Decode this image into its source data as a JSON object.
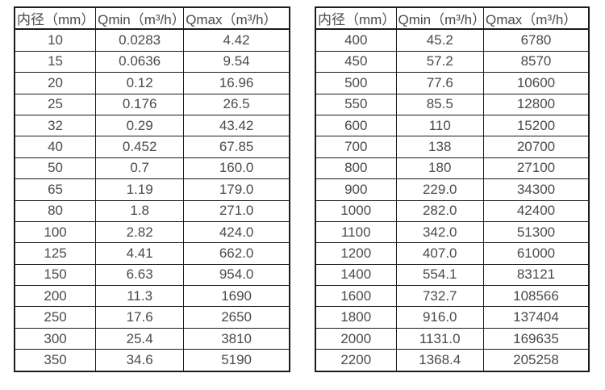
{
  "colors": {
    "background": "#ffffff",
    "border": "#1b1b1b",
    "text": "#4a4a4a"
  },
  "headers": [
    "内径（mm）",
    "Qmin（m³/h）",
    "Qmax（m³/h）"
  ],
  "tables": [
    {
      "name": "small-diameters",
      "rows": [
        [
          "10",
          "0.0283",
          "4.42"
        ],
        [
          "15",
          "0.0636",
          "9.54"
        ],
        [
          "20",
          "0.12",
          "16.96"
        ],
        [
          "25",
          "0.176",
          "26.5"
        ],
        [
          "32",
          "0.29",
          "43.42"
        ],
        [
          "40",
          "0.452",
          "67.85"
        ],
        [
          "50",
          "0.7",
          "160.0"
        ],
        [
          "65",
          "1.19",
          "179.0"
        ],
        [
          "80",
          "1.8",
          "271.0"
        ],
        [
          "100",
          "2.82",
          "424.0"
        ],
        [
          "125",
          "4.41",
          "662.0"
        ],
        [
          "150",
          "6.63",
          "954.0"
        ],
        [
          "200",
          "11.3",
          "1690"
        ],
        [
          "250",
          "17.6",
          "2650"
        ],
        [
          "300",
          "25.4",
          "3810"
        ],
        [
          "350",
          "34.6",
          "5190"
        ]
      ]
    },
    {
      "name": "large-diameters",
      "rows": [
        [
          "400",
          "45.2",
          "6780"
        ],
        [
          "450",
          "57.2",
          "8570"
        ],
        [
          "500",
          "77.6",
          "10600"
        ],
        [
          "550",
          "85.5",
          "12800"
        ],
        [
          "600",
          "110",
          "15200"
        ],
        [
          "700",
          "138",
          "20700"
        ],
        [
          "800",
          "180",
          "27100"
        ],
        [
          "900",
          "229.0",
          "34300"
        ],
        [
          "1000",
          "282.0",
          "42400"
        ],
        [
          "1100",
          "342.0",
          "51300"
        ],
        [
          "1200",
          "407.0",
          "61000"
        ],
        [
          "1400",
          "554.1",
          "83121"
        ],
        [
          "1600",
          "732.7",
          "108566"
        ],
        [
          "1800",
          "916.0",
          "137404"
        ],
        [
          "2000",
          "1131.0",
          "169635"
        ],
        [
          "2200",
          "1368.4",
          "205258"
        ]
      ]
    }
  ]
}
